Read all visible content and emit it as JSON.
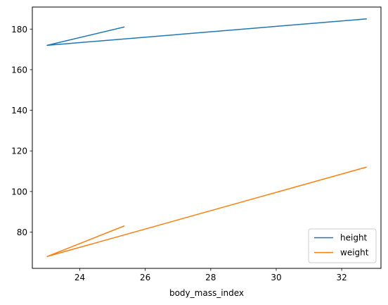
{
  "chart_data": {
    "type": "line",
    "title": "",
    "xlabel": "body_mass_index",
    "ylabel": "",
    "xlim": [
      22.55,
      33.2
    ],
    "ylim": [
      62.15,
      190.85
    ],
    "xticks": [
      24,
      26,
      28,
      30,
      32
    ],
    "yticks": [
      80,
      100,
      120,
      140,
      160,
      180
    ],
    "x": [
      25.35,
      23.0,
      32.75
    ],
    "series": [
      {
        "name": "height",
        "color": "#1f77b4",
        "values": [
          181,
          172,
          185
        ]
      },
      {
        "name": "weight",
        "color": "#ff7f0e",
        "values": [
          83,
          68,
          112
        ]
      }
    ],
    "legend_position": "lower-right",
    "grid": false
  }
}
